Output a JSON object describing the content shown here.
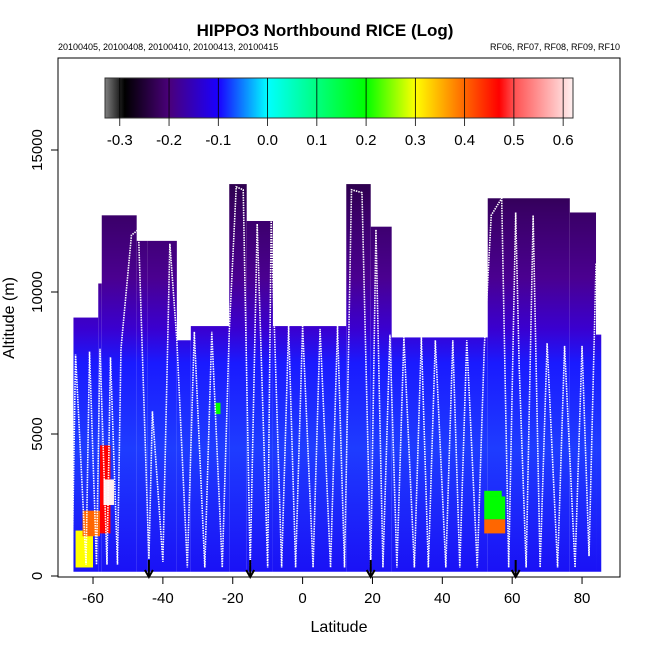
{
  "chart_data": {
    "type": "heatmap",
    "title": "HIPPO3 Northbound RICE (Log)",
    "subtitle_left": "20100405, 20100408, 20100410, 20100413, 20100415",
    "subtitle_right": "RF06, RF07, RF08, RF09, RF10",
    "xlabel": "Latitude",
    "ylabel": "Altitude (m)",
    "xlim": [
      -68,
      90
    ],
    "ylim": [
      0,
      18300
    ],
    "xticks": [
      -60,
      -40,
      -20,
      0,
      20,
      40,
      60,
      80
    ],
    "yticks": [
      0,
      5000,
      10000,
      15000
    ],
    "colorbar": {
      "range": [
        -0.33,
        0.62
      ],
      "ticks": [
        "-0.3",
        "-0.2",
        "-0.1",
        "0.0",
        "0.1",
        "0.2",
        "0.3",
        "0.4",
        "0.5",
        "0.6"
      ],
      "stops": [
        {
          "v": -0.33,
          "c": "#808080"
        },
        {
          "v": -0.29,
          "c": "#000000"
        },
        {
          "v": -0.2,
          "c": "#4a007a"
        },
        {
          "v": -0.1,
          "c": "#1a00ff"
        },
        {
          "v": 0.0,
          "c": "#00ffff"
        },
        {
          "v": 0.2,
          "c": "#00ff00"
        },
        {
          "v": 0.3,
          "c": "#ffff00"
        },
        {
          "v": 0.4,
          "c": "#ff6600"
        },
        {
          "v": 0.47,
          "c": "#ff0000"
        },
        {
          "v": 0.5,
          "c": "#ff5050"
        },
        {
          "v": 0.62,
          "c": "#fff0f0"
        }
      ]
    },
    "curtain_columns": [
      {
        "lat": [
          -65.6,
          -58.5
        ],
        "top": 9100
      },
      {
        "lat": [
          -58.5,
          -57.5
        ],
        "top": 10300
      },
      {
        "lat": [
          -57.5,
          -47.5
        ],
        "top": 12700
      },
      {
        "lat": [
          -47.5,
          -44.5
        ],
        "top": 11800
      },
      {
        "lat": [
          -44.5,
          -36
        ],
        "top": 11800
      },
      {
        "lat": [
          -36,
          -32
        ],
        "top": 8300
      },
      {
        "lat": [
          -32,
          -21
        ],
        "top": 8800
      },
      {
        "lat": [
          -21,
          -16
        ],
        "top": 13800
      },
      {
        "lat": [
          -16,
          -8.5
        ],
        "top": 12500
      },
      {
        "lat": [
          -8.5,
          12.5
        ],
        "top": 8800
      },
      {
        "lat": [
          12.5,
          19.5
        ],
        "top": 13800
      },
      {
        "lat": [
          19.5,
          25.5
        ],
        "top": 12300
      },
      {
        "lat": [
          25.5,
          53
        ],
        "top": 8400
      },
      {
        "lat": [
          53,
          76.5
        ],
        "top": 13300
      },
      {
        "lat": [
          76.5,
          84
        ],
        "top": 12800
      },
      {
        "lat": [
          84,
          85.5
        ],
        "top": 8500
      }
    ],
    "anomalies": [
      {
        "lat": [
          -58,
          -55
        ],
        "alt": [
          1500,
          4600
        ],
        "value": 0.45
      },
      {
        "lat": [
          -57,
          -54
        ],
        "alt": [
          2500,
          3400
        ],
        "value": 0.55
      },
      {
        "lat": [
          -65,
          -60
        ],
        "alt": [
          300,
          1600
        ],
        "value": 0.25
      },
      {
        "lat": [
          -63,
          -58
        ],
        "alt": [
          1400,
          2300
        ],
        "value": 0.4
      },
      {
        "lat": [
          -25,
          -23.5
        ],
        "alt": [
          5700,
          6100
        ],
        "value": 0.15
      },
      {
        "lat": [
          52,
          58
        ],
        "alt": [
          1500,
          2000
        ],
        "value": 0.35
      },
      {
        "lat": [
          52,
          58
        ],
        "alt": [
          2000,
          2800
        ],
        "value": 0.15
      },
      {
        "lat": [
          52,
          57
        ],
        "alt": [
          2800,
          3000
        ],
        "value": 0.08
      }
    ],
    "flight_track": [
      [
        -66,
        300
      ],
      [
        -65,
        7800
      ],
      [
        -62,
        400
      ],
      [
        -61,
        7900
      ],
      [
        -59,
        400
      ],
      [
        -58,
        8000
      ],
      [
        -56,
        400
      ],
      [
        -55,
        7700
      ],
      [
        -53,
        400
      ],
      [
        -52,
        8000
      ],
      [
        -49,
        12000
      ],
      [
        -47,
        12200
      ],
      [
        -44,
        600
      ],
      [
        -43,
        5800
      ],
      [
        -40,
        500
      ],
      [
        -38,
        11700
      ],
      [
        -36,
        8300
      ],
      [
        -33,
        300
      ],
      [
        -31,
        8600
      ],
      [
        -28,
        300
      ],
      [
        -26,
        8600
      ],
      [
        -23,
        300
      ],
      [
        -21,
        8600
      ],
      [
        -19,
        13700
      ],
      [
        -17,
        13600
      ],
      [
        -15,
        300
      ],
      [
        -13,
        12400
      ],
      [
        -10,
        300
      ],
      [
        -9,
        12500
      ],
      [
        -6,
        300
      ],
      [
        -4,
        8800
      ],
      [
        -2,
        300
      ],
      [
        0,
        8800
      ],
      [
        3,
        300
      ],
      [
        5,
        8700
      ],
      [
        8,
        300
      ],
      [
        10,
        8800
      ],
      [
        12,
        300
      ],
      [
        14,
        13600
      ],
      [
        17,
        13500
      ],
      [
        19.5,
        300
      ],
      [
        21,
        12200
      ],
      [
        23,
        300
      ],
      [
        25,
        8500
      ],
      [
        27,
        300
      ],
      [
        29,
        8400
      ],
      [
        32,
        300
      ],
      [
        34,
        8400
      ],
      [
        36,
        300
      ],
      [
        38,
        8300
      ],
      [
        41,
        300
      ],
      [
        43,
        8300
      ],
      [
        45,
        300
      ],
      [
        47,
        8300
      ],
      [
        50,
        300
      ],
      [
        52,
        8000
      ],
      [
        54,
        12700
      ],
      [
        57,
        13300
      ],
      [
        59,
        300
      ],
      [
        61,
        12800
      ],
      [
        62,
        7400
      ],
      [
        64,
        300
      ],
      [
        66,
        12700
      ],
      [
        68,
        300
      ],
      [
        70,
        8200
      ],
      [
        73,
        300
      ],
      [
        75,
        8100
      ],
      [
        78,
        300
      ],
      [
        80,
        8100
      ],
      [
        82,
        700
      ],
      [
        84,
        11000
      ]
    ],
    "dive_markers": [
      -44,
      -15,
      19.5,
      61
    ]
  }
}
